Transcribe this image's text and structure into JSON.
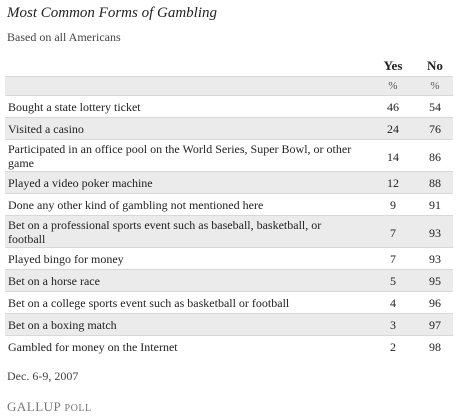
{
  "header": {
    "title": "Most Common Forms of Gambling",
    "subtitle": "Based on all Americans"
  },
  "chart_data": {
    "type": "table",
    "title": "Most Common Forms of Gambling",
    "subtitle": "Based on all Americans",
    "columns": [
      "Yes",
      "No"
    ],
    "units": [
      "%",
      "%"
    ],
    "rows": [
      {
        "label": "Bought a state lottery ticket",
        "yes": 46,
        "no": 54
      },
      {
        "label": "Visited a casino",
        "yes": 24,
        "no": 76
      },
      {
        "label": "Participated in an office pool on the World Series, Super Bowl, or other game",
        "yes": 14,
        "no": 86
      },
      {
        "label": "Played a video poker machine",
        "yes": 12,
        "no": 88
      },
      {
        "label": "Done any other kind of gambling not mentioned here",
        "yes": 9,
        "no": 91
      },
      {
        "label": "Bet on a professional sports event such as baseball, basketball, or football",
        "yes": 7,
        "no": 93
      },
      {
        "label": "Played bingo for money",
        "yes": 7,
        "no": 93
      },
      {
        "label": "Bet on a horse race",
        "yes": 5,
        "no": 95
      },
      {
        "label": "Bet on a college sports event such as basketball or football",
        "yes": 4,
        "no": 96
      },
      {
        "label": "Bet on a boxing match",
        "yes": 3,
        "no": 97
      },
      {
        "label": "Gambled for money on the Internet",
        "yes": 2,
        "no": 98
      }
    ]
  },
  "footer": {
    "date": "Dec. 6-9, 2007",
    "logo_main": "GALLUP",
    "logo_sub": "POLL"
  }
}
